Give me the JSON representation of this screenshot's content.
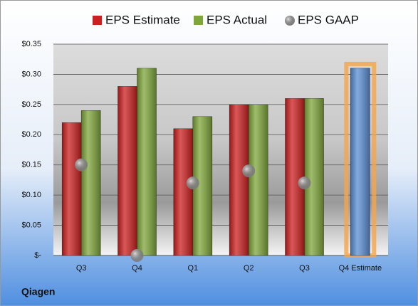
{
  "chart_data": {
    "type": "bar",
    "title": "Qiagen",
    "categories": [
      "Q3",
      "Q4",
      "Q1",
      "Q2",
      "Q3",
      "Q4 Estimate"
    ],
    "series": [
      {
        "name": "EPS Estimate",
        "color": "#cc1f1f",
        "point_colors": [
          "#cc1f1f",
          "#cc1f1f",
          "#cc1f1f",
          "#cc1f1f",
          "#cc1f1f",
          "#5b8fd6"
        ],
        "values": [
          0.22,
          0.28,
          0.21,
          0.25,
          0.26,
          0.31
        ]
      },
      {
        "name": "EPS Actual",
        "color": "#7fa63a",
        "values": [
          0.24,
          0.31,
          0.23,
          0.25,
          0.26,
          null
        ]
      },
      {
        "name": "EPS GAAP",
        "color": "#9a9a9a",
        "marker": "bubble",
        "values": [
          0.15,
          0,
          0.12,
          0.14,
          0.12,
          null
        ]
      }
    ],
    "ylim": [
      0,
      0.35
    ],
    "yticks": [
      {
        "value": 0,
        "label": "$-"
      },
      {
        "value": 0.05,
        "label": "$0.05"
      },
      {
        "value": 0.1,
        "label": "$0.10"
      },
      {
        "value": 0.15,
        "label": "$0.15"
      },
      {
        "value": 0.2,
        "label": "$0.20"
      },
      {
        "value": 0.25,
        "label": "$0.25"
      },
      {
        "value": 0.3,
        "label": "$0.30"
      },
      {
        "value": 0.35,
        "label": "$0.35"
      }
    ],
    "grid": true
  }
}
